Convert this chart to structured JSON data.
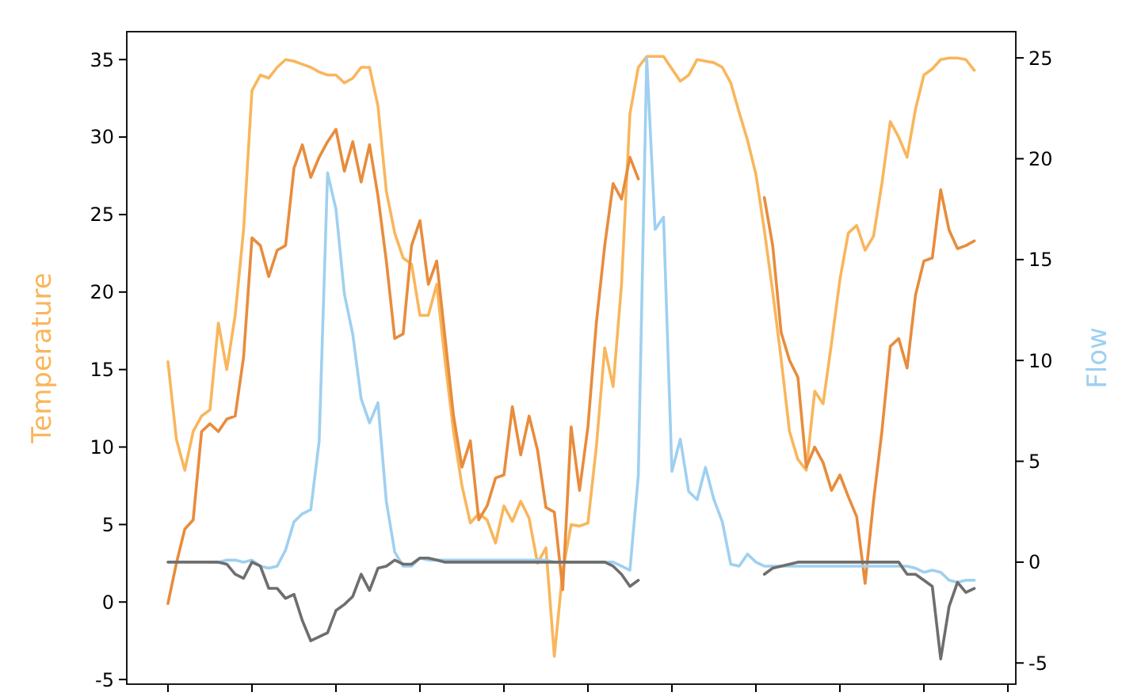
{
  "chart_data": {
    "type": "line",
    "ylabel": "Temperature",
    "y2label": "Flow",
    "categories": [
      null,
      null,
      null,
      null,
      null,
      null,
      null,
      null,
      null,
      null,
      null,
      null,
      null,
      null,
      null,
      null,
      null,
      null,
      null,
      null,
      null,
      null,
      null,
      null,
      null,
      null,
      null,
      null,
      null,
      null,
      null,
      null,
      null,
      null,
      null,
      null,
      null,
      null,
      null,
      null,
      null,
      null,
      null,
      null,
      null,
      null,
      null,
      null,
      null,
      null,
      null,
      null,
      null,
      null,
      null,
      null,
      null,
      null,
      null,
      null,
      null,
      null,
      null,
      null,
      null,
      null,
      null,
      null,
      null,
      null,
      null,
      null,
      null,
      null,
      null,
      null,
      null,
      null,
      null,
      null,
      null,
      null,
      null,
      null,
      null,
      null,
      null,
      null,
      null,
      null,
      null,
      null,
      null,
      null,
      null,
      null,
      null,
      null,
      null,
      null,
      null
    ],
    "ylim": [
      -5.3,
      36.8
    ],
    "yticks": [
      -5,
      0,
      5,
      10,
      15,
      20,
      25,
      30,
      35
    ],
    "y2lim": [
      -6.05,
      26.3
    ],
    "y2ticks": [
      -5,
      0,
      5,
      10,
      15,
      20,
      25
    ],
    "grid": false,
    "series": [
      {
        "color": "#f9b65c",
        "values": [
          15.5,
          10.5,
          8.5,
          11,
          12,
          12.4,
          18,
          15,
          18.5,
          24,
          33,
          34,
          33.8,
          34.5,
          35,
          34.9,
          34.7,
          34.5,
          34.2,
          34,
          34,
          33.5,
          33.8,
          34.5,
          34.5,
          32,
          26.5,
          23.8,
          22.2,
          21.8,
          18.5,
          18.5,
          20.5,
          15.5,
          11,
          7.5,
          5.1,
          5.7,
          5.3,
          3.8,
          6.2,
          5.2,
          6.5,
          5.4,
          2.5,
          3.5,
          -3.5,
          2,
          5,
          4.9,
          5.1,
          10,
          16.4,
          13.9,
          20.5,
          31.5,
          34.5,
          35.2,
          35.2,
          35.2,
          34.4,
          33.6,
          34,
          35,
          34.9,
          34.8,
          34.5,
          33.5,
          31.6,
          29.8,
          27.6,
          24,
          20,
          15.7,
          11,
          9.2,
          8.5,
          13.6,
          12.8,
          16.7,
          20.8,
          23.8,
          24.3,
          22.7,
          23.6,
          27,
          31,
          30,
          28.7,
          31.8,
          34,
          34.4,
          35,
          35.1,
          35.1,
          35,
          34.3,
          null,
          null,
          null,
          null
        ]
      },
      {
        "color": "#e88c3c",
        "values": [
          -0.1,
          2.5,
          4.7,
          5.3,
          11,
          11.5,
          11,
          11.8,
          12,
          15.8,
          23.5,
          23,
          21,
          22.7,
          23,
          28,
          29.5,
          27.4,
          28.7,
          29.7,
          30.5,
          27.8,
          29.7,
          27.1,
          29.5,
          26.2,
          22,
          17,
          17.3,
          23,
          24.6,
          20.5,
          22,
          17,
          12,
          8.7,
          10.4,
          5.3,
          6.2,
          8,
          8.2,
          12.6,
          9.5,
          12,
          9.8,
          6.1,
          5.8,
          0.8,
          11.3,
          7.2,
          11.3,
          18,
          23,
          27,
          26,
          28.7,
          27.3,
          null,
          null,
          null,
          null,
          null,
          null,
          null,
          null,
          null,
          null,
          null,
          null,
          null,
          null,
          26.1,
          23,
          17.4,
          15.6,
          14.5,
          8.7,
          10,
          9,
          7.2,
          8.2,
          6.8,
          5.5,
          1.2,
          6.5,
          11,
          16.5,
          17,
          15.1,
          19.8,
          22,
          22.2,
          26.6,
          24,
          22.8,
          23,
          23.3,
          null,
          null,
          null,
          null
        ]
      },
      {
        "color": "#9fd0f0",
        "axis": "y2",
        "values": [
          null,
          null,
          null,
          null,
          null,
          0,
          0,
          0.1,
          0.1,
          0,
          0.1,
          -0.2,
          -0.3,
          -0.2,
          0.6,
          2,
          2.4,
          2.6,
          6,
          19.3,
          17.5,
          13.3,
          11.3,
          8.1,
          6.9,
          7.9,
          3,
          0.5,
          -0.2,
          -0.2,
          0.2,
          0.1,
          0.1,
          0.1,
          0.1,
          0.1,
          0.1,
          0.1,
          0.1,
          0.1,
          0.1,
          0.1,
          0.1,
          0.1,
          0.1,
          0.1,
          0,
          0,
          0,
          0,
          0,
          0,
          0,
          0,
          -0.2,
          -0.4,
          4.3,
          25,
          16.5,
          17.1,
          4.5,
          6.1,
          3.5,
          3.1,
          4.7,
          3.1,
          2,
          -0.1,
          -0.2,
          0.4,
          0,
          -0.2,
          -0.2,
          -0.2,
          -0.2,
          -0.2,
          -0.2,
          -0.2,
          -0.2,
          -0.2,
          -0.2,
          -0.2,
          -0.2,
          -0.2,
          -0.2,
          -0.2,
          -0.2,
          -0.2,
          -0.2,
          -0.3,
          -0.5,
          -0.4,
          -0.5,
          -0.9,
          -1,
          -0.9,
          -0.9,
          null,
          null,
          null,
          null
        ]
      },
      {
        "color": "#6e6e6e",
        "axis": "y2",
        "values": [
          0,
          0,
          0,
          0,
          0,
          0,
          0,
          -0.1,
          -0.6,
          -0.8,
          0,
          -0.2,
          -1.3,
          -1.3,
          -1.8,
          -1.6,
          -2.9,
          -3.9,
          -3.7,
          -3.5,
          -2.4,
          -2.1,
          -1.7,
          -0.6,
          -1.4,
          -0.3,
          -0.2,
          0.1,
          -0.1,
          -0.1,
          0.2,
          0.2,
          0.1,
          0,
          0,
          0,
          0,
          0,
          0,
          0,
          0,
          0,
          0,
          0,
          0,
          0,
          0,
          0,
          0,
          0,
          0,
          0,
          0,
          -0.2,
          -0.6,
          -1.2,
          -0.9,
          null,
          null,
          null,
          null,
          null,
          null,
          null,
          null,
          null,
          null,
          null,
          null,
          null,
          null,
          -0.6,
          -0.3,
          -0.2,
          -0.1,
          0,
          0,
          0,
          0,
          0,
          0,
          0,
          0,
          0,
          0,
          0,
          0,
          0,
          -0.6,
          -0.6,
          -0.9,
          -1.2,
          -4.8,
          -2.2,
          -1,
          -1.5,
          -1.3,
          null,
          null,
          null,
          null
        ]
      }
    ]
  }
}
